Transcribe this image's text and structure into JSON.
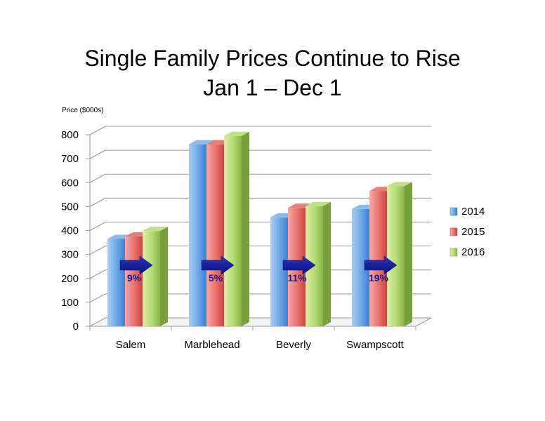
{
  "chart_data": {
    "type": "bar",
    "title": "Single Family Prices Continue to Rise",
    "subtitle": "Jan 1 – Dec 1",
    "ylabel": "Price ($000s)",
    "ylim": [
      0,
      800
    ],
    "yticks": [
      0,
      100,
      200,
      300,
      400,
      500,
      600,
      700,
      800
    ],
    "categories": [
      "Salem",
      "Marblehead",
      "Beverly",
      "Swampscott"
    ],
    "series": [
      {
        "name": "2014",
        "values": [
          365,
          760,
          455,
          490
        ],
        "color": "#5b9bd5"
      },
      {
        "name": "2015",
        "values": [
          375,
          760,
          495,
          565
        ],
        "color": "#e35d5d"
      },
      {
        "name": "2016",
        "values": [
          398,
          795,
          502,
          585
        ],
        "color": "#a4cf5a"
      }
    ],
    "annotations": [
      "9%",
      "5%",
      "11%",
      "19%"
    ],
    "grid": true,
    "legend": "right"
  }
}
